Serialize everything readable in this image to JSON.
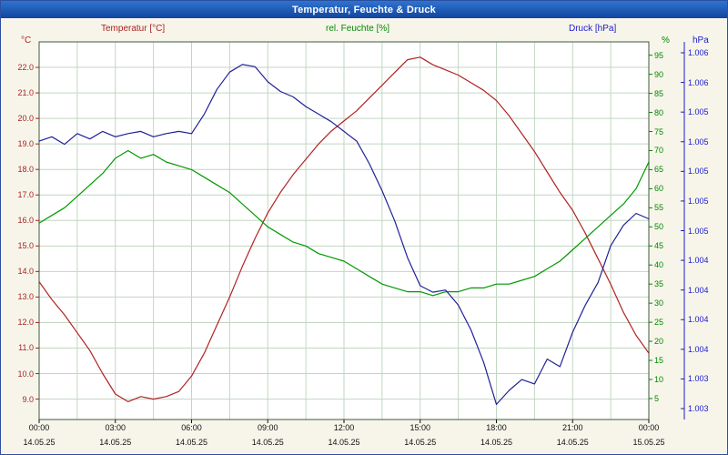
{
  "window": {
    "title": "Temperatur, Feuchte & Druck"
  },
  "legend": {
    "temperature": "Temperatur [°C]",
    "humidity": "rel. Feuchte [%]",
    "pressure": "Druck [hPa]"
  },
  "units": {
    "temperature": "°C",
    "humidity": "%",
    "pressure": "hPa"
  },
  "colors": {
    "temperature_line": "#b22222",
    "humidity_line": "#009900",
    "pressure_line": "#202099",
    "temperature_label": "#aa2222",
    "humidity_label": "#008800",
    "pressure_label": "#1a1acc",
    "grid": "#c2d6c2",
    "plot_border": "#3c5a3c",
    "background": "#f7f5ea",
    "titlebar": "#11459e"
  },
  "chart_data": {
    "type": "line",
    "title": "Temperatur, Feuchte & Druck",
    "grid": {
      "horizontal_step_degC": 1.0,
      "vertical_step_hours": 1.5,
      "grid_on": true
    },
    "x_hours": [
      0,
      0.5,
      1,
      1.5,
      2,
      2.5,
      3,
      3.5,
      4,
      4.5,
      5,
      5.5,
      6,
      6.5,
      7,
      7.5,
      8,
      8.5,
      9,
      9.5,
      10,
      10.5,
      11,
      11.5,
      12,
      12.5,
      13,
      13.5,
      14,
      14.5,
      15,
      15.5,
      16,
      16.5,
      17,
      17.5,
      18,
      18.5,
      19,
      19.5,
      20,
      20.5,
      21,
      21.5,
      22,
      22.5,
      23,
      23.5,
      24
    ],
    "x_ticks": {
      "hours": [
        0,
        3,
        6,
        9,
        12,
        15,
        18,
        21,
        24
      ],
      "times": [
        "00:00",
        "03:00",
        "06:00",
        "09:00",
        "12:00",
        "15:00",
        "18:00",
        "21:00",
        "00:00"
      ],
      "dates": [
        "14.05.25",
        "14.05.25",
        "14.05.25",
        "14.05.25",
        "14.05.25",
        "14.05.25",
        "14.05.25",
        "14.05.25",
        "15.05.25"
      ]
    },
    "axes": {
      "temp": {
        "min": 8.2,
        "max": 23.0,
        "tick_values": [
          22,
          21,
          20,
          19,
          18,
          17,
          16,
          15,
          14,
          13,
          12,
          11,
          10,
          9
        ],
        "tick_labels": [
          "22.0",
          "21.0",
          "20.0",
          "19.0",
          "18.0",
          "17.0",
          "16.0",
          "15.0",
          "14.0",
          "13.0",
          "12.0",
          "11.0",
          "10.0",
          "9.0"
        ]
      },
      "humidity": {
        "min": -0.5,
        "max": 98.5,
        "tick_values": [
          95,
          90,
          85,
          80,
          75,
          70,
          65,
          60,
          55,
          50,
          45,
          40,
          35,
          30,
          25,
          20,
          15,
          10,
          5
        ],
        "tick_labels": [
          "95",
          "90",
          "85",
          "80",
          "75",
          "70",
          "65",
          "60",
          "55",
          "50",
          "45",
          "40",
          "35",
          "30",
          "25",
          "20",
          "15",
          "10",
          "5"
        ]
      },
      "pressure": {
        "min": 1.00275,
        "max": 1.00625,
        "tick_labels": [
          "1.006",
          "1.006",
          "1.005",
          "1.005",
          "1.005",
          "1.005",
          "1.005",
          "1.004",
          "1.004",
          "1.004",
          "1.004",
          "1.003",
          "1.003"
        ]
      }
    },
    "series": [
      {
        "name": "Temperatur [°C]",
        "axis": "temp",
        "color": "#b22222",
        "values": [
          13.6,
          12.9,
          12.3,
          11.6,
          10.9,
          10.0,
          9.2,
          8.9,
          9.1,
          9.0,
          9.1,
          9.3,
          9.9,
          10.8,
          11.9,
          13.0,
          14.2,
          15.3,
          16.3,
          17.1,
          17.8,
          18.4,
          19.0,
          19.5,
          19.9,
          20.3,
          20.8,
          21.3,
          21.8,
          22.3,
          22.4,
          22.1,
          21.9,
          21.7,
          21.4,
          21.1,
          20.7,
          20.1,
          19.4,
          18.7,
          17.9,
          17.1,
          16.4,
          15.5,
          14.5,
          13.5,
          12.4,
          11.5,
          10.8
        ]
      },
      {
        "name": "rel. Feuchte [%]",
        "axis": "humidity",
        "color": "#009900",
        "values": [
          51,
          53,
          55,
          58,
          61,
          64,
          68,
          70,
          68,
          69,
          67,
          66,
          65,
          63,
          61,
          59,
          56,
          53,
          50,
          48,
          46,
          45,
          43,
          42,
          41,
          39,
          37,
          35,
          34,
          33,
          33,
          32,
          33,
          33,
          34,
          34,
          35,
          35,
          36,
          37,
          39,
          41,
          44,
          47,
          50,
          53,
          56,
          60,
          67
        ]
      },
      {
        "name": "Druck [hPa]",
        "axis": "pressure",
        "color": "#202099",
        "values": [
          1.00533,
          1.00537,
          1.0053,
          1.0054,
          1.00535,
          1.00542,
          1.00537,
          1.0054,
          1.00542,
          1.00537,
          1.0054,
          1.00542,
          1.0054,
          1.00558,
          1.00581,
          1.00597,
          1.00604,
          1.00602,
          1.00588,
          1.00579,
          1.00574,
          1.00565,
          1.00558,
          1.00551,
          1.00542,
          1.00533,
          1.00512,
          1.00487,
          1.00459,
          1.00425,
          1.00399,
          1.00393,
          1.00395,
          1.00381,
          1.00358,
          1.00328,
          1.00289,
          1.00302,
          1.00312,
          1.00308,
          1.00331,
          1.00324,
          1.00356,
          1.00381,
          1.00402,
          1.00436,
          1.00455,
          1.00466,
          1.00461
        ]
      }
    ]
  }
}
